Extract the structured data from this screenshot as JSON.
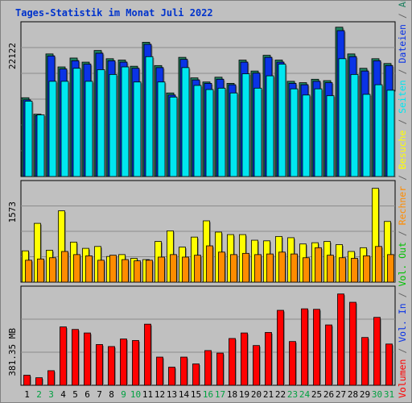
{
  "chart_data": {
    "type": "bar",
    "title": "Tages-Statistik im Monat Juli 2022",
    "categories": [
      "1",
      "2",
      "3",
      "4",
      "5",
      "6",
      "7",
      "8",
      "9",
      "10",
      "11",
      "12",
      "13",
      "14",
      "15",
      "16",
      "17",
      "18",
      "19",
      "20",
      "21",
      "22",
      "23",
      "24",
      "25",
      "26",
      "27",
      "28",
      "29",
      "30",
      "31"
    ],
    "weekend_days": [
      "2",
      "3",
      "9",
      "10",
      "16",
      "17",
      "23",
      "24",
      "30",
      "31"
    ],
    "panels": [
      {
        "id": "top",
        "ytick_label": "22122",
        "ymax": 22122,
        "series": [
          {
            "name": "Anfragen",
            "color": "#1f8060",
            "values": [
              11500,
              9100,
              17900,
              16000,
              17300,
              16700,
              18400,
              17200,
              17000,
              16100,
              19600,
              16200,
              12200,
              17400,
              14400,
              13800,
              14500,
              13600,
              17000,
              15400,
              17700,
              17000,
              13900,
              13700,
              14200,
              14000,
              21800,
              17900,
              15800,
              17200,
              16500
            ]
          },
          {
            "name": "Dateien",
            "color": "#0a33e6",
            "values": [
              11200,
              8900,
              17600,
              15700,
              16900,
              16400,
              18000,
              16900,
              16700,
              15800,
              19300,
              15900,
              11900,
              17100,
              14100,
              13600,
              14200,
              13400,
              16700,
              15100,
              17400,
              16700,
              13600,
              13400,
              13900,
              13700,
              21300,
              17500,
              15400,
              16900,
              16200
            ]
          },
          {
            "name": "Seiten",
            "color": "#00e6f0",
            "values": [
              11000,
              9000,
              13900,
              13900,
              15800,
              13900,
              15600,
              14900,
              16000,
              13800,
              17500,
              13800,
              11600,
              15900,
              13300,
              12700,
              12900,
              12200,
              15000,
              12900,
              14700,
              16400,
              12800,
              11900,
              12800,
              11800,
              17200,
              14900,
              12000,
              13400,
              12600
            ]
          }
        ]
      },
      {
        "id": "middle",
        "ytick_label": "1573",
        "ymax": 1573,
        "series": [
          {
            "name": "Besuche",
            "color": "#ffff00",
            "values": [
              500,
              940,
              510,
              1140,
              640,
              540,
              570,
              410,
              440,
              380,
              360,
              650,
              820,
              560,
              720,
              980,
              800,
              760,
              760,
              670,
              660,
              730,
              710,
              610,
              630,
              650,
              600,
              490,
              550,
              1500,
              970
            ]
          },
          {
            "name": "Rechner",
            "color": "#ff8c00",
            "values": [
              350,
              370,
              390,
              490,
              440,
              420,
              350,
              430,
              360,
              340,
              350,
              400,
              440,
              400,
              430,
              580,
              480,
              440,
              460,
              440,
              450,
              480,
              450,
              390,
              550,
              430,
              390,
              380,
              420,
              570,
              440
            ]
          }
        ]
      },
      {
        "id": "bottom",
        "ytick_label": "381.35 MB",
        "ymax": 381.35,
        "series": [
          {
            "name": "Volumen",
            "color": "#ff0000",
            "values": [
              40,
              30,
              58,
              232,
              222,
              208,
              162,
              154,
              184,
              178,
              243,
              112,
              72,
              112,
              85,
              138,
              128,
              186,
              208,
              158,
              210,
              298,
              174,
              304,
              302,
              240,
              363,
              330,
              190,
              270,
              164
            ]
          }
        ]
      }
    ],
    "right_legend": [
      {
        "text": "Anfragen",
        "color": "#1f8060"
      },
      {
        "text": "/",
        "color": "#606060"
      },
      {
        "text": "Dateien",
        "color": "#0a33e6"
      },
      {
        "text": "/",
        "color": "#606060"
      },
      {
        "text": "Seiten",
        "color": "#00e6f0"
      },
      {
        "text": "/",
        "color": "#606060"
      },
      {
        "text": "Besuche",
        "color": "#ffff00"
      },
      {
        "text": "/",
        "color": "#606060"
      },
      {
        "text": "Rechner",
        "color": "#ff8c00"
      },
      {
        "text": "/",
        "color": "#606060"
      },
      {
        "text": "Vol. Out",
        "color": "#00c000"
      },
      {
        "text": "/",
        "color": "#606060"
      },
      {
        "text": "Vol. In",
        "color": "#0a33e6"
      },
      {
        "text": "/",
        "color": "#606060"
      },
      {
        "text": "Volumen",
        "color": "#ff0000"
      }
    ],
    "colors": {
      "title": "#0033cc",
      "weekday_label": "#000000",
      "weekend_label": "#00a040",
      "plot_bg": "#c0c0c0"
    }
  }
}
